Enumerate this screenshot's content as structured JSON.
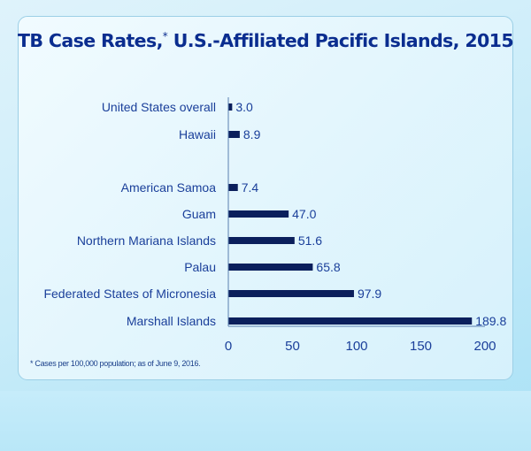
{
  "chart_data": {
    "type": "bar",
    "orientation": "horizontal",
    "title": "TB Case Rates,",
    "title_marker": "*",
    "title_rest": " U.S.-Affiliated Pacific Islands, 2015",
    "categories": [
      "United States overall",
      "Hawaii",
      "American Samoa",
      "Guam",
      "Northern Mariana Islands",
      "Palau",
      "Federated States of Micronesia",
      "Marshall Islands"
    ],
    "values": [
      3.0,
      8.9,
      7.4,
      47.0,
      51.6,
      65.8,
      97.9,
      189.8
    ],
    "value_labels": [
      "3.0",
      "8.9",
      "7.4",
      "47.0",
      "51.6",
      "65.8",
      "97.9",
      "189.8"
    ],
    "xlim": [
      0,
      200
    ],
    "xticks": [
      "0",
      "50",
      "100",
      "150",
      "200"
    ],
    "grid": false,
    "bar_color": "#0b1f5c",
    "label_color": "#1a3f9a",
    "footnote": "* Cases per 100,000 population; as of June 9, 2016."
  }
}
